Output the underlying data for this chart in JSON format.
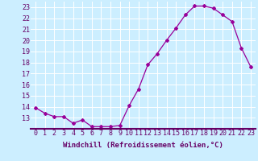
{
  "x": [
    0,
    1,
    2,
    3,
    4,
    5,
    6,
    7,
    8,
    9,
    10,
    11,
    12,
    13,
    14,
    15,
    16,
    17,
    18,
    19,
    20,
    21,
    22,
    23
  ],
  "y": [
    13.9,
    13.4,
    13.1,
    13.1,
    12.5,
    12.8,
    12.2,
    12.2,
    12.2,
    12.3,
    14.1,
    15.6,
    17.8,
    18.8,
    20.0,
    21.1,
    22.3,
    23.1,
    23.1,
    22.9,
    22.3,
    21.7,
    19.3,
    17.6
  ],
  "line_color": "#990099",
  "marker": "D",
  "marker_size": 2.0,
  "bg_color": "#cceeff",
  "grid_color": "#aaddcc",
  "xlabel": "Windchill (Refroidissement éolien,°C)",
  "xlabel_fontsize": 6.5,
  "tick_fontsize": 6.0,
  "ylim": [
    12.0,
    23.5
  ],
  "xlim": [
    -0.5,
    23.5
  ],
  "yticks": [
    13,
    14,
    15,
    16,
    17,
    18,
    19,
    20,
    21,
    22,
    23
  ],
  "xticks": [
    0,
    1,
    2,
    3,
    4,
    5,
    6,
    7,
    8,
    9,
    10,
    11,
    12,
    13,
    14,
    15,
    16,
    17,
    18,
    19,
    20,
    21,
    22,
    23
  ]
}
